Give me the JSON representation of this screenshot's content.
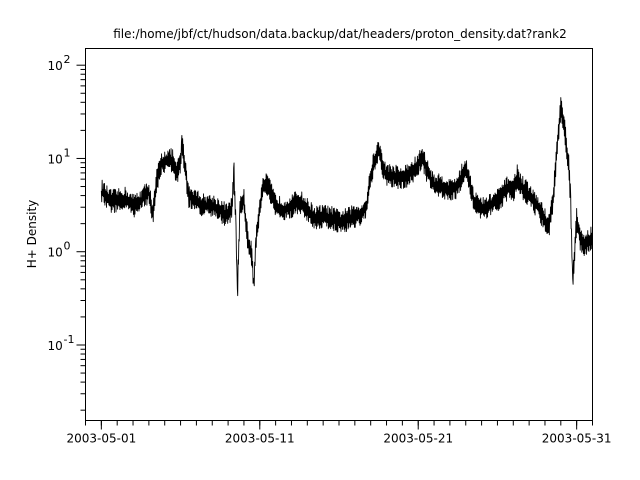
{
  "chart_data": {
    "type": "line",
    "title": "file:/home/jbf/ct/hudson/data.backup/dat/headers/proton_density.dat?rank2",
    "xlabel": "",
    "ylabel": "H+ Density",
    "yscale": "log",
    "xlim": [
      "2003-04-30T00:00",
      "2003-06-01T00:00"
    ],
    "ylim": [
      0.0155,
      151
    ],
    "grid": false,
    "line_color": "#000000",
    "xticks": [
      {
        "date": "2003-05-01",
        "label": "2003-05-01"
      },
      {
        "date": "2003-05-11",
        "label": "2003-05-11"
      },
      {
        "date": "2003-05-21",
        "label": "2003-05-21"
      },
      {
        "date": "2003-05-31",
        "label": "2003-05-31"
      }
    ],
    "yticks": [
      {
        "value": 0.1,
        "base": "10",
        "exp": "-1"
      },
      {
        "value": 1,
        "base": "10",
        "exp": "0"
      },
      {
        "value": 10,
        "base": "10",
        "exp": "1"
      },
      {
        "value": 100,
        "base": "10",
        "exp": "2"
      }
    ],
    "series": [
      {
        "x": [
          "2003-05-01T00:00",
          "2003-05-01T06:00",
          "2003-05-01T12:00",
          "2003-05-02T00:00",
          "2003-05-02T12:00",
          "2003-05-03T00:00",
          "2003-05-03T12:00",
          "2003-05-04T00:00",
          "2003-05-04T06:00",
          "2003-05-04T12:00",
          "2003-05-04T18:00",
          "2003-05-05T00:00",
          "2003-05-05T12:00",
          "2003-05-05T18:00",
          "2003-05-06T00:00",
          "2003-05-06T02:00",
          "2003-05-06T12:00",
          "2003-05-07T00:00",
          "2003-05-07T12:00",
          "2003-05-08T00:00",
          "2003-05-08T12:00",
          "2003-05-09T00:00",
          "2003-05-09T06:00",
          "2003-05-09T09:00",
          "2003-05-09T12:00",
          "2003-05-09T14:00",
          "2003-05-09T18:00",
          "2003-05-10T00:00",
          "2003-05-10T06:00",
          "2003-05-10T12:00",
          "2003-05-10T15:00",
          "2003-05-10T18:00",
          "2003-05-11T00:00",
          "2003-05-11T06:00",
          "2003-05-11T12:00",
          "2003-05-12T00:00",
          "2003-05-12T12:00",
          "2003-05-13T00:00",
          "2003-05-13T12:00",
          "2003-05-14T00:00",
          "2003-05-14T12:00",
          "2003-05-15T00:00",
          "2003-05-15T12:00",
          "2003-05-16T00:00",
          "2003-05-16T12:00",
          "2003-05-17T00:00",
          "2003-05-17T12:00",
          "2003-05-17T18:00",
          "2003-05-18T00:00",
          "2003-05-18T06:00",
          "2003-05-18T12:00",
          "2003-05-18T18:00",
          "2003-05-19T00:00",
          "2003-05-19T12:00",
          "2003-05-20T00:00",
          "2003-05-20T12:00",
          "2003-05-21T00:00",
          "2003-05-21T06:00",
          "2003-05-21T12:00",
          "2003-05-22T00:00",
          "2003-05-22T12:00",
          "2003-05-23T00:00",
          "2003-05-23T12:00",
          "2003-05-23T18:00",
          "2003-05-24T00:00",
          "2003-05-24T06:00",
          "2003-05-24T12:00",
          "2003-05-25T00:00",
          "2003-05-25T12:00",
          "2003-05-26T00:00",
          "2003-05-26T12:00",
          "2003-05-26T18:00",
          "2003-05-27T00:00",
          "2003-05-27T06:00",
          "2003-05-27T12:00",
          "2003-05-28T00:00",
          "2003-05-28T12:00",
          "2003-05-29T00:00",
          "2003-05-29T06:00",
          "2003-05-29T12:00",
          "2003-05-29T18:00",
          "2003-05-30T00:00",
          "2003-05-30T06:00",
          "2003-05-30T12:00",
          "2003-05-30T15:00",
          "2003-05-30T18:00",
          "2003-05-31T00:00",
          "2003-05-31T06:00",
          "2003-05-31T12:00",
          "2003-05-31T18:00",
          "2003-06-01T00:00"
        ],
        "y": [
          4.5,
          4.0,
          3.5,
          3.5,
          3.7,
          3.1,
          3.5,
          4.5,
          2.4,
          5.8,
          8.4,
          9.5,
          9.5,
          6.5,
          9.5,
          15.5,
          4.0,
          3.5,
          3.1,
          3.1,
          2.8,
          2.4,
          3.1,
          7.0,
          1.7,
          0.32,
          3.1,
          3.5,
          1.3,
          0.9,
          0.39,
          1.3,
          3.1,
          5.1,
          5.1,
          3.1,
          2.8,
          3.1,
          3.5,
          2.8,
          2.3,
          2.4,
          2.3,
          2.1,
          2.2,
          2.4,
          2.6,
          3.1,
          6.5,
          9.5,
          12.1,
          8.4,
          6.5,
          6.5,
          6.1,
          6.9,
          8.4,
          10.7,
          7.8,
          5.1,
          5.1,
          4.5,
          5.1,
          6.5,
          7.8,
          5.8,
          3.5,
          2.8,
          3.1,
          3.5,
          4.5,
          5.1,
          4.5,
          6.5,
          5.1,
          4.0,
          3.1,
          2.2,
          1.9,
          3.5,
          12.1,
          36.7,
          19.8,
          8.4,
          3.5,
          0.44,
          2.2,
          1.3,
          1.2,
          1.3,
          1.5
        ]
      }
    ]
  }
}
